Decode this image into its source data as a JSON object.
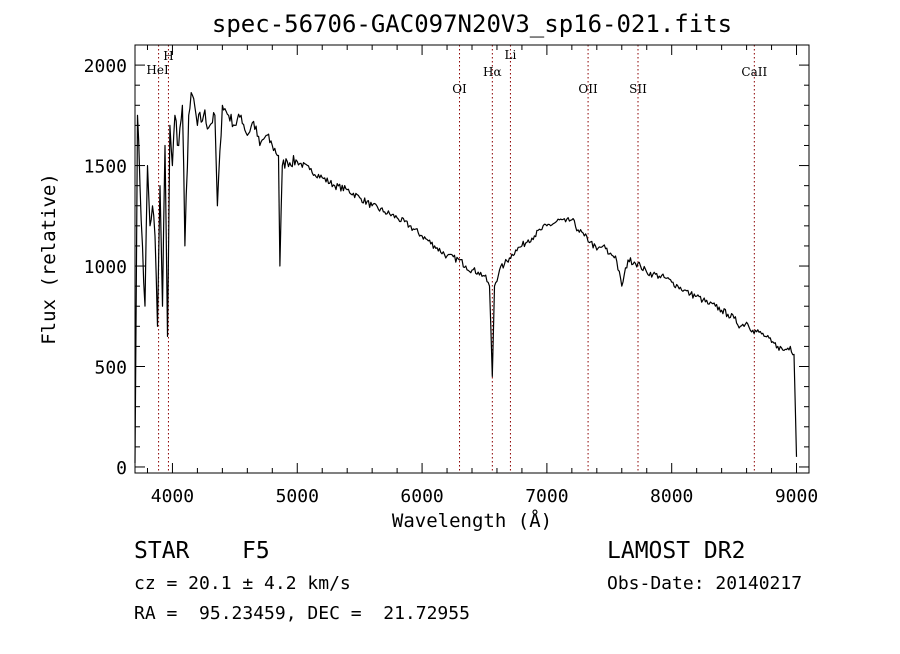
{
  "chart_data": {
    "type": "line",
    "title": "spec-56706-GAC097N20V3_sp16-021.fits",
    "xlabel": "Wavelength (Å)",
    "ylabel": "Flux (relative)",
    "xlim": [
      3700,
      9100
    ],
    "ylim": [
      -30,
      2100
    ],
    "xticks": [
      4000,
      5000,
      6000,
      7000,
      8000,
      9000
    ],
    "yticks": [
      0,
      500,
      1000,
      1500,
      2000
    ],
    "grid": false,
    "line_color": "#000000",
    "marker_color": "#8b0000",
    "series": [
      {
        "x": [
          3700,
          3720,
          3740,
          3760,
          3780,
          3800,
          3820,
          3840,
          3860,
          3880,
          3900,
          3920,
          3940,
          3960,
          3980,
          4000,
          4020,
          4050,
          4080,
          4100,
          4130,
          4160,
          4200,
          4250,
          4300,
          4340,
          4360,
          4400,
          4450,
          4500,
          4550,
          4600,
          4650,
          4700,
          4750,
          4800,
          4850,
          4861,
          4880,
          4920,
          5000,
          5100,
          5200,
          5300,
          5400,
          5500,
          5600,
          5700,
          5800,
          5900,
          6000,
          6100,
          6200,
          6300,
          6350,
          6400,
          6450,
          6500,
          6540,
          6563,
          6580,
          6620,
          6660,
          6700,
          6750,
          6800,
          6850,
          6900,
          6950,
          7000,
          7050,
          7100,
          7150,
          7200,
          7250,
          7300,
          7350,
          7400,
          7450,
          7500,
          7550,
          7600,
          7650,
          7700,
          7750,
          7800,
          7850,
          7900,
          7950,
          8000,
          8050,
          8100,
          8150,
          8200,
          8250,
          8300,
          8350,
          8400,
          8450,
          8500,
          8550,
          8600,
          8650,
          8700,
          8750,
          8800,
          8850,
          8900,
          8950,
          8980,
          9000
        ],
        "y": [
          20,
          1750,
          1400,
          1100,
          800,
          1500,
          1200,
          1300,
          1150,
          700,
          1400,
          800,
          1600,
          650,
          1700,
          1500,
          1750,
          1600,
          1800,
          1100,
          1750,
          1850,
          1700,
          1750,
          1700,
          1750,
          1300,
          1800,
          1750,
          1700,
          1750,
          1650,
          1720,
          1600,
          1650,
          1600,
          1550,
          1000,
          1500,
          1520,
          1520,
          1480,
          1440,
          1400,
          1380,
          1340,
          1300,
          1270,
          1240,
          1200,
          1150,
          1100,
          1050,
          1030,
          1000,
          980,
          970,
          950,
          900,
          450,
          900,
          980,
          1010,
          1040,
          1080,
          1100,
          1130,
          1150,
          1180,
          1200,
          1210,
          1230,
          1220,
          1230,
          1180,
          1150,
          1120,
          1080,
          1100,
          1060,
          1050,
          900,
          1030,
          1020,
          1000,
          970,
          960,
          950,
          940,
          920,
          900,
          880,
          860,
          850,
          830,
          810,
          800,
          780,
          760,
          740,
          700,
          720,
          680,
          670,
          650,
          620,
          600,
          580,
          600,
          560,
          50
        ]
      }
    ],
    "lines": [
      {
        "label": "HeI",
        "x": 3889
      },
      {
        "label": "H",
        "x": 3968
      },
      {
        "label": "OI",
        "x": 6300
      },
      {
        "label": "Hα",
        "x": 6563
      },
      {
        "label": "Li",
        "x": 6708
      },
      {
        "label": "OII",
        "x": 7330
      },
      {
        "label": "SII",
        "x": 7730
      },
      {
        "label": "CaII",
        "x": 8662
      }
    ]
  },
  "info": {
    "object_class": "STAR",
    "subclass": "F5",
    "survey": "LAMOST DR2",
    "redshift": "cz = 20.1 ± 4.2 km/s",
    "obs_date": "Obs-Date: 20140217",
    "coords": "RA =  95.23459, DEC =  21.72955"
  }
}
